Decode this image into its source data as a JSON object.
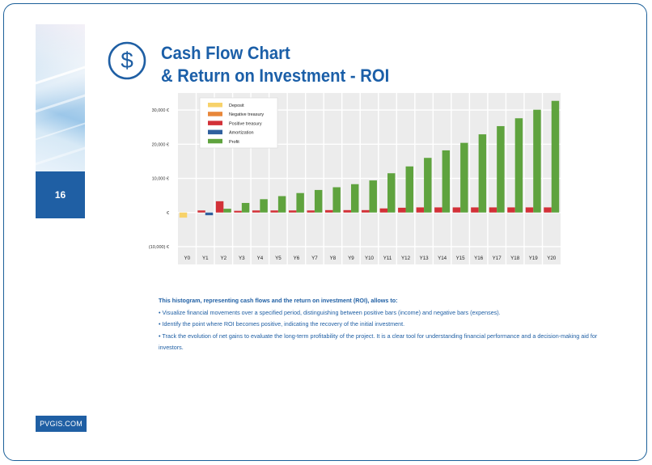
{
  "page": {
    "title_line1": "Cash Flow Chart",
    "title_line2": "& Return on Investment - ROI",
    "page_number": "16",
    "site": "PVGIS.COM",
    "accent_color": "#1f5fa4"
  },
  "description": {
    "lead": "This histogram, representing cash flows and the return on investment (ROI), allows to:",
    "bullets": [
      "• Visualize financial movements over a specified period, distinguishing between positive bars (income) and negative bars (expenses).",
      "• Identify the point where ROI becomes positive, indicating the recovery of the initial investment.",
      "• Track the evolution of net gains to evaluate the long-term profitability of the project. It is a clear tool for understanding financial performance and a decision-making aid for investors."
    ]
  },
  "chart_data": {
    "type": "bar",
    "title": "",
    "xlabel": "",
    "ylabel": "",
    "ylim": [
      -10000,
      35000
    ],
    "yticks": [
      -10000,
      0,
      10000,
      20000,
      30000
    ],
    "ytick_labels": [
      "(10,000) €",
      "€",
      "10,000 €",
      "20,000 €",
      "30,000 €"
    ],
    "categories": [
      "Y0",
      "Y1",
      "Y2",
      "Y3",
      "Y4",
      "Y5",
      "Y6",
      "Y7",
      "Y8",
      "Y9",
      "Y10",
      "Y11",
      "Y12",
      "Y13",
      "Y14",
      "Y15",
      "Y16",
      "Y17",
      "Y18",
      "Y19",
      "Y20"
    ],
    "legend_position": "top-left",
    "series": [
      {
        "name": "Deposit",
        "color": "#f7d26a",
        "values": [
          -1500,
          0,
          0,
          0,
          0,
          0,
          0,
          0,
          0,
          0,
          0,
          0,
          0,
          0,
          0,
          0,
          0,
          0,
          0,
          0,
          0
        ]
      },
      {
        "name": "Negative treasury",
        "color": "#e8873a",
        "values": [
          0,
          0,
          0,
          0,
          0,
          0,
          0,
          0,
          0,
          0,
          0,
          0,
          0,
          0,
          0,
          0,
          0,
          0,
          0,
          0,
          0
        ]
      },
      {
        "name": "Positive treasury",
        "color": "#d23138",
        "values": [
          0,
          600,
          3300,
          500,
          600,
          600,
          600,
          600,
          700,
          700,
          700,
          1200,
          1400,
          1500,
          1500,
          1500,
          1500,
          1500,
          1500,
          1500,
          1500
        ]
      },
      {
        "name": "Amortization",
        "color": "#2f5f9e",
        "values": [
          0,
          -800,
          0,
          0,
          0,
          0,
          0,
          0,
          0,
          0,
          0,
          0,
          0,
          0,
          0,
          0,
          0,
          0,
          0,
          0,
          0
        ]
      },
      {
        "name": "Profit",
        "color": "#5fa33e",
        "values": [
          0,
          0,
          1100,
          2800,
          3900,
          4800,
          5700,
          6600,
          7400,
          8300,
          9400,
          11500,
          13500,
          16000,
          18200,
          20400,
          22900,
          25300,
          27600,
          30100,
          32700
        ]
      }
    ]
  }
}
